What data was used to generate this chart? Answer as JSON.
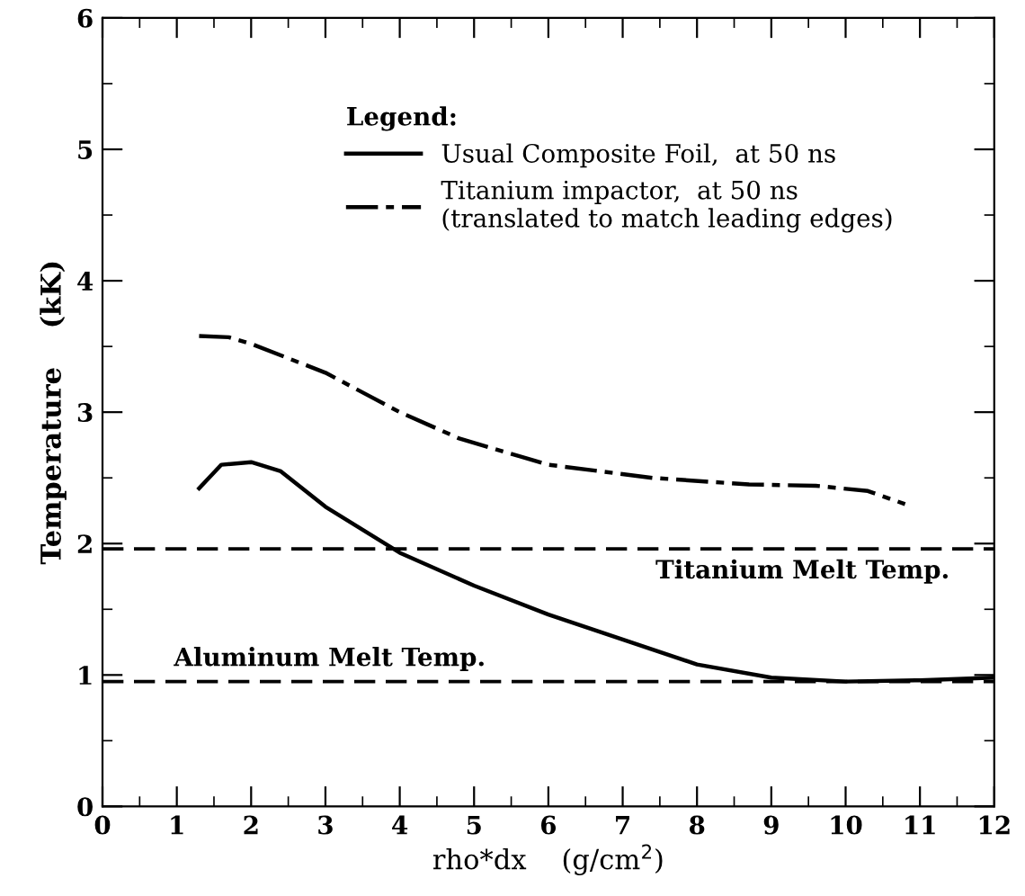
{
  "chart_data": {
    "type": "line",
    "xlabel": "rho*dx    (g/cm$^{2}$)",
    "ylabel": "Temperature    (kK)",
    "legend_title": "Legend:",
    "legend": "top",
    "series": [
      {
        "name": "Usual Composite Foil,  at 50 ns",
        "color": "#000000",
        "line_style": "solid",
        "x": [
          1.3,
          1.6,
          2.0,
          2.4,
          3.0,
          4.0,
          5.0,
          6.0,
          7.0,
          8.0,
          9.0,
          10.0,
          11.0,
          12.0
        ],
        "values": [
          2.42,
          2.6,
          2.62,
          2.55,
          2.28,
          1.93,
          1.68,
          1.46,
          1.27,
          1.08,
          0.98,
          0.95,
          0.96,
          0.98
        ]
      },
      {
        "name": "Titanium impactor,  at 50 ns\n(translated to match leading edges)",
        "color": "#000000",
        "line_style": "dashdot",
        "x": [
          1.3,
          1.7,
          2.0,
          3.0,
          3.6,
          4.0,
          4.8,
          6.0,
          7.4,
          8.7,
          9.6,
          10.3,
          10.8
        ],
        "values": [
          3.58,
          3.57,
          3.52,
          3.3,
          3.12,
          3.0,
          2.8,
          2.6,
          2.5,
          2.45,
          2.44,
          2.4,
          2.3
        ]
      }
    ],
    "ref_lines": [
      {
        "axis": "y",
        "value": 1.96,
        "label": "Titanium Melt Temp.",
        "color": "#000000",
        "line_style": "dashed"
      },
      {
        "axis": "y",
        "value": 0.95,
        "label": "Aluminum Melt Temp.",
        "color": "#000000",
        "line_style": "dashed"
      }
    ],
    "xlim": [
      0,
      12
    ],
    "xticks": [
      0,
      1,
      2,
      3,
      4,
      5,
      6,
      7,
      8,
      9,
      10,
      11,
      12
    ],
    "ylim": [
      0,
      6
    ],
    "yticks": [
      0,
      1,
      2,
      3,
      4,
      5,
      6
    ],
    "grid": false
  }
}
